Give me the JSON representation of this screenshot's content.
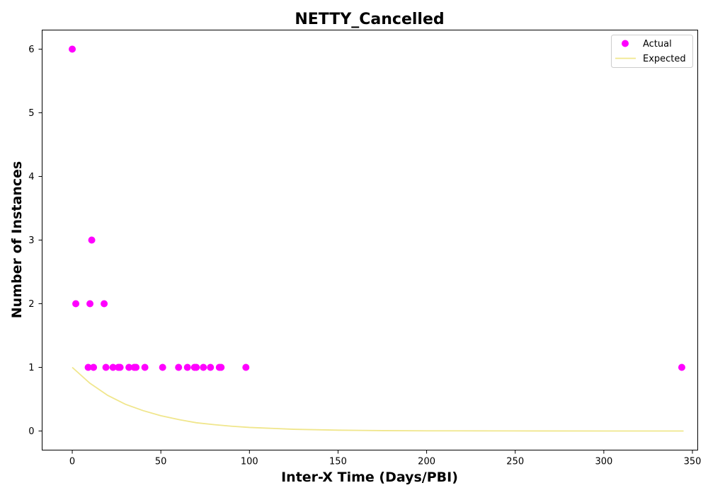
{
  "chart_data": {
    "type": "scatter",
    "title": "NETTY_Cancelled",
    "xlabel": "Inter-X Time (Days/PBI)",
    "ylabel": "Number of Instances",
    "xlim": [
      -17,
      353
    ],
    "ylim": [
      -0.3,
      6.3
    ],
    "xticks": [
      0,
      50,
      100,
      150,
      200,
      250,
      300,
      350
    ],
    "yticks": [
      0,
      1,
      2,
      3,
      4,
      5,
      6
    ],
    "grid": false,
    "legend_position": "top-right",
    "series": [
      {
        "name": "Actual",
        "kind": "scatter",
        "color": "#ff00ff",
        "points": [
          [
            0,
            6
          ],
          [
            2,
            2
          ],
          [
            9,
            1
          ],
          [
            10,
            2
          ],
          [
            11,
            3
          ],
          [
            12,
            1
          ],
          [
            18,
            2
          ],
          [
            19,
            1
          ],
          [
            23,
            1
          ],
          [
            26,
            1
          ],
          [
            27,
            1
          ],
          [
            32,
            1
          ],
          [
            35,
            1
          ],
          [
            36,
            1
          ],
          [
            41,
            1
          ],
          [
            51,
            1
          ],
          [
            60,
            1
          ],
          [
            65,
            1
          ],
          [
            69,
            1
          ],
          [
            70,
            1
          ],
          [
            74,
            1
          ],
          [
            78,
            1
          ],
          [
            83,
            1
          ],
          [
            84,
            1
          ],
          [
            98,
            1
          ],
          [
            344,
            1
          ]
        ]
      },
      {
        "name": "Expected",
        "kind": "line",
        "color": "#f0e68c",
        "points": [
          [
            0,
            1.0
          ],
          [
            10,
            0.75
          ],
          [
            20,
            0.56
          ],
          [
            30,
            0.42
          ],
          [
            40,
            0.32
          ],
          [
            50,
            0.24
          ],
          [
            60,
            0.18
          ],
          [
            70,
            0.13
          ],
          [
            80,
            0.1
          ],
          [
            90,
            0.075
          ],
          [
            100,
            0.056
          ],
          [
            125,
            0.027
          ],
          [
            150,
            0.013
          ],
          [
            175,
            0.006
          ],
          [
            200,
            0.003
          ],
          [
            250,
            0.001
          ],
          [
            300,
            0.0
          ],
          [
            345,
            0.0
          ]
        ]
      }
    ]
  }
}
